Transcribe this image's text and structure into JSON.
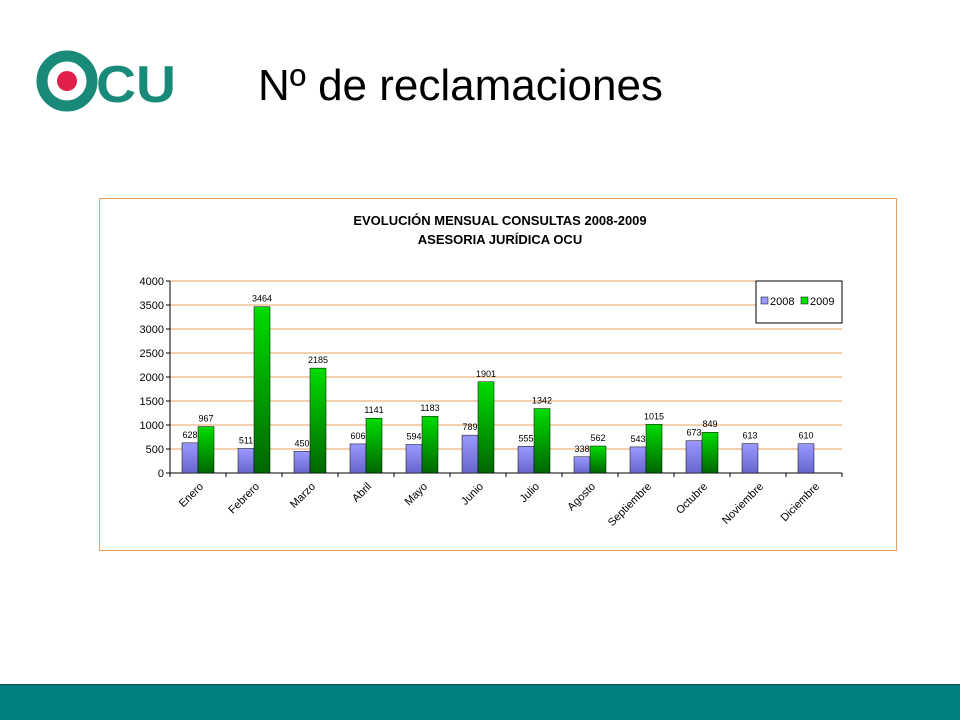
{
  "slide": {
    "title": "Nº de reclamaciones",
    "logo_text": "OCU",
    "colors": {
      "logo_teal": "#1a8a78",
      "logo_red": "#e0204a",
      "footer": "#008080",
      "chart_border": "#e8a060",
      "gridline": "#e8a060"
    }
  },
  "chart_data": {
    "type": "bar",
    "title": "EVOLUCIÓN MENSUAL CONSULTAS 2008-2009",
    "subtitle": "ASESORIA JURÍDICA OCU",
    "xlabel": "",
    "ylabel": "",
    "ylim": [
      0,
      4000
    ],
    "yticks": [
      0,
      500,
      1000,
      1500,
      2000,
      2500,
      3000,
      3500,
      4000
    ],
    "grid": true,
    "legend_position": "top-right",
    "categories": [
      "Enero",
      "Febrero",
      "Marzo",
      "Abril",
      "Mayo",
      "Junio",
      "Julio",
      "Agosto",
      "Septiembre",
      "Octubre",
      "Noviembre",
      "Diciembre"
    ],
    "series": [
      {
        "name": "2008",
        "color": "#9999ff",
        "values": [
          628,
          511,
          450,
          606,
          594,
          789,
          555,
          338,
          543,
          673,
          613,
          610
        ]
      },
      {
        "name": "2009",
        "color": "#00dd00",
        "values": [
          967,
          3464,
          2185,
          1141,
          1183,
          1901,
          1342,
          562,
          1015,
          849,
          null,
          null
        ]
      }
    ]
  }
}
